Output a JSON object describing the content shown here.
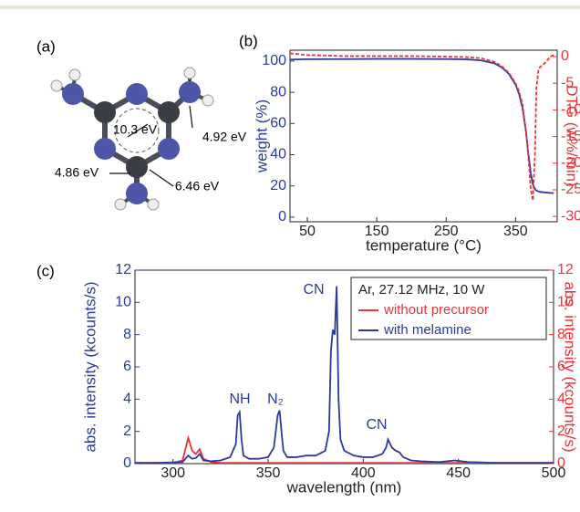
{
  "panel_a": {
    "label": "(a)",
    "energies": [
      "10.3 eV",
      "4.92 eV",
      "4.86 eV",
      "6.46 eV"
    ]
  },
  "chart_data": [
    {
      "type": "line",
      "label": "(b)",
      "xlabel": "temperature (°C)",
      "ylabel": "weight (%)",
      "y2label": "DTG (w%/min)",
      "x": [
        25,
        50,
        100,
        150,
        200,
        250,
        280,
        300,
        320,
        330,
        340,
        350,
        355,
        360,
        365,
        368,
        372,
        375,
        378,
        380,
        383,
        385,
        390,
        395,
        400,
        405
      ],
      "series": [
        {
          "color": "#2b3a9c",
          "linestyle": "solid",
          "values": [
            101,
            101.2,
            101.3,
            101.4,
            101.4,
            101.3,
            101.1,
            100.5,
            98.5,
            96,
            92,
            85,
            79,
            70,
            55,
            42,
            28,
            21,
            18,
            17,
            16.5,
            16.2,
            15.9,
            15.7,
            15.5,
            15.4
          ]
        },
        {
          "color": "#e8343a",
          "linestyle": "dashed",
          "axis": "y2",
          "values": [
            0.6,
            0.3,
            0.1,
            0.1,
            0.1,
            0,
            -0.1,
            -0.3,
            -1,
            -1.8,
            -3,
            -5,
            -6.5,
            -9,
            -14,
            -18,
            -25,
            -27,
            -18,
            -6,
            -2.5,
            -2,
            -1.5,
            -0.8,
            0,
            0.3
          ]
        }
      ],
      "xlim": [
        25,
        410
      ],
      "ylim": [
        -3,
        107
      ],
      "y2lim": [
        -31,
        1.2
      ],
      "xticks": [
        50,
        150,
        250,
        350
      ],
      "yticks": [
        0,
        20,
        40,
        60,
        80,
        100
      ],
      "y2ticks": [
        0,
        -5,
        -10,
        -15,
        -20,
        -25,
        -30
      ]
    },
    {
      "type": "line",
      "label": "(c)",
      "xlabel": "wavelength (nm)",
      "ylabel": "abs. intensity (kcounts/s)",
      "y2label": "abs. intensity (kcounts/s)",
      "legend_title": "Ar, 27.12 MHz, 10 W",
      "legend": "upper right",
      "annotations": [
        "NH",
        "N₂",
        "CN",
        "CN"
      ],
      "x": [
        280,
        290,
        300,
        305,
        308,
        310,
        312,
        314,
        316,
        320,
        325,
        330,
        333,
        334,
        335,
        336,
        337,
        340,
        345,
        350,
        353,
        355,
        356,
        357,
        358,
        360,
        365,
        370,
        375,
        380,
        382,
        383,
        384,
        385,
        386,
        387,
        388,
        390,
        395,
        400,
        405,
        410,
        412,
        413,
        415,
        417,
        419,
        421,
        425,
        430,
        440,
        448,
        455,
        470,
        500
      ],
      "series": [
        {
          "name": "without precursor",
          "color": "#e8343a",
          "axis": "y2",
          "values": [
            0.05,
            0.05,
            0.05,
            0.2,
            1.6,
            0.8,
            0.6,
            0.9,
            0.3,
            0.1,
            0.05,
            0.05,
            0.05,
            0.05,
            0.05,
            0.05,
            0.05,
            0.05,
            0.05,
            0.05,
            0.05,
            0.05,
            0.05,
            0.05,
            0.05,
            0.05,
            0.05,
            0.05,
            0.05,
            0.05,
            0.05,
            0.05,
            0.05,
            0.05,
            0.05,
            0.05,
            0.05,
            0.05,
            0.05,
            0.05,
            0.05,
            0.05,
            0.05,
            0.05,
            0.05,
            0.05,
            0.05,
            0.05,
            0.05,
            0.05,
            0.05,
            0.05,
            0.05,
            0.05,
            0.05
          ]
        },
        {
          "name": "with melamine",
          "color": "#2b3a9c",
          "values": [
            0.05,
            0.05,
            0.08,
            0.1,
            0.5,
            0.3,
            0.35,
            0.6,
            0.2,
            0.15,
            0.2,
            0.4,
            1.2,
            3.0,
            3.2,
            1.5,
            0.5,
            0.3,
            0.3,
            0.4,
            1.0,
            3.0,
            3.3,
            2.0,
            0.8,
            0.4,
            0.4,
            0.5,
            0.5,
            0.8,
            2.0,
            7.0,
            8.3,
            8.0,
            11.0,
            4.0,
            1.5,
            0.8,
            0.5,
            0.4,
            0.4,
            0.6,
            1.0,
            1.5,
            1.0,
            0.8,
            0.7,
            0.4,
            0.2,
            0.15,
            0.1,
            0.2,
            0.1,
            0.05,
            0.05
          ]
        }
      ],
      "xlim": [
        280,
        500
      ],
      "ylim": [
        0,
        12
      ],
      "y2lim": [
        0,
        12
      ],
      "xticks": [
        300,
        350,
        400,
        450,
        500
      ],
      "yticks": [
        0,
        2,
        4,
        6,
        8,
        10,
        12
      ],
      "y2ticks": [
        0,
        2,
        4,
        6,
        8,
        10,
        12
      ]
    }
  ]
}
